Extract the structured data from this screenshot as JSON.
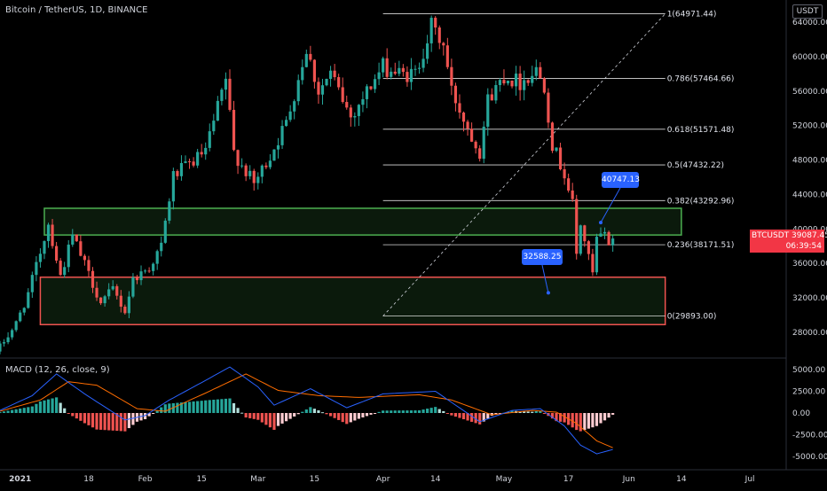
{
  "header": {
    "title": "Bitcoin / TetherUS, 1D, BINANCE",
    "currency": "USDT"
  },
  "price_tag": {
    "symbol": "BTCUSDT",
    "price": "39087.45",
    "countdown": "06:39:54"
  },
  "callouts": [
    {
      "text": "40747.13",
      "price": 40747.13,
      "date": "2021-05-25"
    },
    {
      "text": "32588.25",
      "price": 32588.25,
      "date": "2021-05-12"
    }
  ],
  "colors": {
    "up": "#26a69a",
    "down": "#ef5350",
    "fib": "#ffffff",
    "zone_green": "#4caf50",
    "zone_red": "#ef5350",
    "callout": "#2962ff",
    "macd_line": "#2962ff",
    "signal_line": "#ff6d00",
    "background": "#000000"
  },
  "chart_data": [
    {
      "type": "candlestick",
      "title": "Bitcoin / TetherUS, 1D, BINANCE",
      "x_tick_labels": [
        "2021",
        "18",
        "Feb",
        "15",
        "Mar",
        "15",
        "Apr",
        "14",
        "May",
        "17",
        "Jun",
        "14",
        "Jul"
      ],
      "y_tick_labels": [
        "28000.00",
        "32000.00",
        "36000.00",
        "40000.00",
        "44000.00",
        "48000.00",
        "52000.00",
        "56000.00",
        "60000.00",
        "64000.00"
      ],
      "ylim": [
        25000,
        66000
      ],
      "xlim": [
        "2020-12-27",
        "2021-07-10"
      ],
      "x_ticks": [
        {
          "date": "2021-01-01",
          "label": "2021"
        },
        {
          "date": "2021-01-18",
          "label": "18"
        },
        {
          "date": "2021-02-01",
          "label": "Feb"
        },
        {
          "date": "2021-02-15",
          "label": "15"
        },
        {
          "date": "2021-03-01",
          "label": "Mar"
        },
        {
          "date": "2021-03-15",
          "label": "15"
        },
        {
          "date": "2021-04-01",
          "label": "Apr"
        },
        {
          "date": "2021-04-14",
          "label": "14"
        },
        {
          "date": "2021-05-01",
          "label": "May"
        },
        {
          "date": "2021-05-17",
          "label": "17"
        },
        {
          "date": "2021-06-01",
          "label": "Jun"
        },
        {
          "date": "2021-06-14",
          "label": "14"
        },
        {
          "date": "2021-07-01",
          "label": "Jul"
        }
      ],
      "y_ticks": [
        28000,
        32000,
        36000,
        40000,
        44000,
        48000,
        52000,
        56000,
        60000,
        64000
      ],
      "close_anchors": [
        {
          "date": "2020-12-27",
          "close": 26300
        },
        {
          "date": "2020-12-31",
          "close": 29000
        },
        {
          "date": "2021-01-03",
          "close": 32500
        },
        {
          "date": "2021-01-08",
          "close": 40600
        },
        {
          "date": "2021-01-11",
          "close": 34500
        },
        {
          "date": "2021-01-14",
          "close": 39200
        },
        {
          "date": "2021-01-21",
          "close": 31400
        },
        {
          "date": "2021-01-24",
          "close": 33000
        },
        {
          "date": "2021-01-27",
          "close": 30400
        },
        {
          "date": "2021-01-29",
          "close": 34200
        },
        {
          "date": "2021-02-02",
          "close": 35500
        },
        {
          "date": "2021-02-05",
          "close": 38000
        },
        {
          "date": "2021-02-08",
          "close": 46200
        },
        {
          "date": "2021-02-12",
          "close": 47500
        },
        {
          "date": "2021-02-16",
          "close": 49000
        },
        {
          "date": "2021-02-21",
          "close": 57400
        },
        {
          "date": "2021-02-23",
          "close": 48900
        },
        {
          "date": "2021-02-28",
          "close": 45200
        },
        {
          "date": "2021-03-04",
          "close": 48500
        },
        {
          "date": "2021-03-08",
          "close": 52300
        },
        {
          "date": "2021-03-13",
          "close": 61000
        },
        {
          "date": "2021-03-16",
          "close": 56000
        },
        {
          "date": "2021-03-19",
          "close": 58000
        },
        {
          "date": "2021-03-24",
          "close": 53000
        },
        {
          "date": "2021-03-28",
          "close": 56000
        },
        {
          "date": "2021-04-01",
          "close": 58800
        },
        {
          "date": "2021-04-06",
          "close": 57800
        },
        {
          "date": "2021-04-09",
          "close": 58000
        },
        {
          "date": "2021-04-13",
          "close": 63500
        },
        {
          "date": "2021-04-16",
          "close": 61300
        },
        {
          "date": "2021-04-18",
          "close": 56000
        },
        {
          "date": "2021-04-22",
          "close": 51800
        },
        {
          "date": "2021-04-25",
          "close": 49000
        },
        {
          "date": "2021-04-27",
          "close": 55000
        },
        {
          "date": "2021-05-01",
          "close": 57800
        },
        {
          "date": "2021-05-05",
          "close": 57000
        },
        {
          "date": "2021-05-09",
          "close": 58500
        },
        {
          "date": "2021-05-11",
          "close": 56700
        },
        {
          "date": "2021-05-13",
          "close": 49800
        },
        {
          "date": "2021-05-16",
          "close": 46400
        },
        {
          "date": "2021-05-18",
          "close": 42900
        },
        {
          "date": "2021-05-19",
          "close": 37000
        },
        {
          "date": "2021-05-20",
          "close": 40600
        },
        {
          "date": "2021-05-23",
          "close": 34700
        },
        {
          "date": "2021-05-24",
          "close": 38800
        },
        {
          "date": "2021-05-26",
          "close": 39300
        },
        {
          "date": "2021-05-27",
          "close": 38400
        },
        {
          "date": "2021-05-28",
          "close": 39087
        }
      ],
      "fib_levels": [
        {
          "ratio": "0",
          "price": 29893.0,
          "label": "0(29893.00)"
        },
        {
          "ratio": "0.236",
          "price": 38171.51,
          "label": "0.236(38171.51)"
        },
        {
          "ratio": "0.382",
          "price": 43292.96,
          "label": "0.382(43292.96)"
        },
        {
          "ratio": "0.5",
          "price": 47432.22,
          "label": "0.5(47432.22)"
        },
        {
          "ratio": "0.618",
          "price": 51571.48,
          "label": "0.618(51571.48)"
        },
        {
          "ratio": "0.786",
          "price": 57464.66,
          "label": "0.786(57464.66)"
        },
        {
          "ratio": "1",
          "price": 64971.44,
          "label": "1(64971.44)"
        }
      ],
      "fib_range": {
        "from": "2021-04-01",
        "to": "2021-06-10"
      },
      "trendline": {
        "from_date": "2021-04-01",
        "from_price": 29893.0,
        "to_date": "2021-06-10",
        "to_price": 64971.44
      },
      "zones": [
        {
          "name": "resistance",
          "from_date": "2021-01-07",
          "to_date": "2021-06-14",
          "top": 42400,
          "bottom": 39300
        },
        {
          "name": "support",
          "from_date": "2021-01-06",
          "to_date": "2021-06-10",
          "top": 34400,
          "bottom": 28900
        }
      ]
    },
    {
      "type": "macd",
      "title": "MACD (12, 26, close, 9)",
      "y_tick_labels": [
        "5000.00",
        "2500.00",
        "0.00",
        "-2500.00",
        "-5000.00"
      ],
      "y_ticks": [
        5000,
        2500,
        0,
        -2500,
        -5000
      ],
      "ylim": [
        -6000,
        6000
      ],
      "macd_anchors": [
        {
          "date": "2020-12-27",
          "value": 300
        },
        {
          "date": "2021-01-04",
          "value": 2000
        },
        {
          "date": "2021-01-10",
          "value": 4500
        },
        {
          "date": "2021-01-17",
          "value": 2200
        },
        {
          "date": "2021-01-27",
          "value": -800
        },
        {
          "date": "2021-02-01",
          "value": -300
        },
        {
          "date": "2021-02-07",
          "value": 1500
        },
        {
          "date": "2021-02-15",
          "value": 3500
        },
        {
          "date": "2021-02-22",
          "value": 5300
        },
        {
          "date": "2021-03-01",
          "value": 3000
        },
        {
          "date": "2021-03-05",
          "value": 900
        },
        {
          "date": "2021-03-14",
          "value": 2800
        },
        {
          "date": "2021-03-23",
          "value": 600
        },
        {
          "date": "2021-04-01",
          "value": 2200
        },
        {
          "date": "2021-04-14",
          "value": 2500
        },
        {
          "date": "2021-04-25",
          "value": -1000
        },
        {
          "date": "2021-05-03",
          "value": 300
        },
        {
          "date": "2021-05-10",
          "value": 500
        },
        {
          "date": "2021-05-16",
          "value": -1500
        },
        {
          "date": "2021-05-20",
          "value": -3700
        },
        {
          "date": "2021-05-24",
          "value": -4700
        },
        {
          "date": "2021-05-28",
          "value": -4200
        }
      ],
      "signal_anchors": [
        {
          "date": "2020-12-27",
          "value": 200
        },
        {
          "date": "2021-01-06",
          "value": 1500
        },
        {
          "date": "2021-01-13",
          "value": 3600
        },
        {
          "date": "2021-01-20",
          "value": 3200
        },
        {
          "date": "2021-01-30",
          "value": 500
        },
        {
          "date": "2021-02-06",
          "value": 200
        },
        {
          "date": "2021-02-16",
          "value": 2300
        },
        {
          "date": "2021-02-26",
          "value": 4500
        },
        {
          "date": "2021-03-06",
          "value": 2600
        },
        {
          "date": "2021-03-16",
          "value": 2000
        },
        {
          "date": "2021-03-26",
          "value": 1800
        },
        {
          "date": "2021-04-10",
          "value": 2100
        },
        {
          "date": "2021-04-18",
          "value": 1500
        },
        {
          "date": "2021-04-28",
          "value": -200
        },
        {
          "date": "2021-05-08",
          "value": 300
        },
        {
          "date": "2021-05-14",
          "value": 100
        },
        {
          "date": "2021-05-19",
          "value": -1200
        },
        {
          "date": "2021-05-24",
          "value": -3200
        },
        {
          "date": "2021-05-28",
          "value": -4000
        }
      ]
    }
  ]
}
